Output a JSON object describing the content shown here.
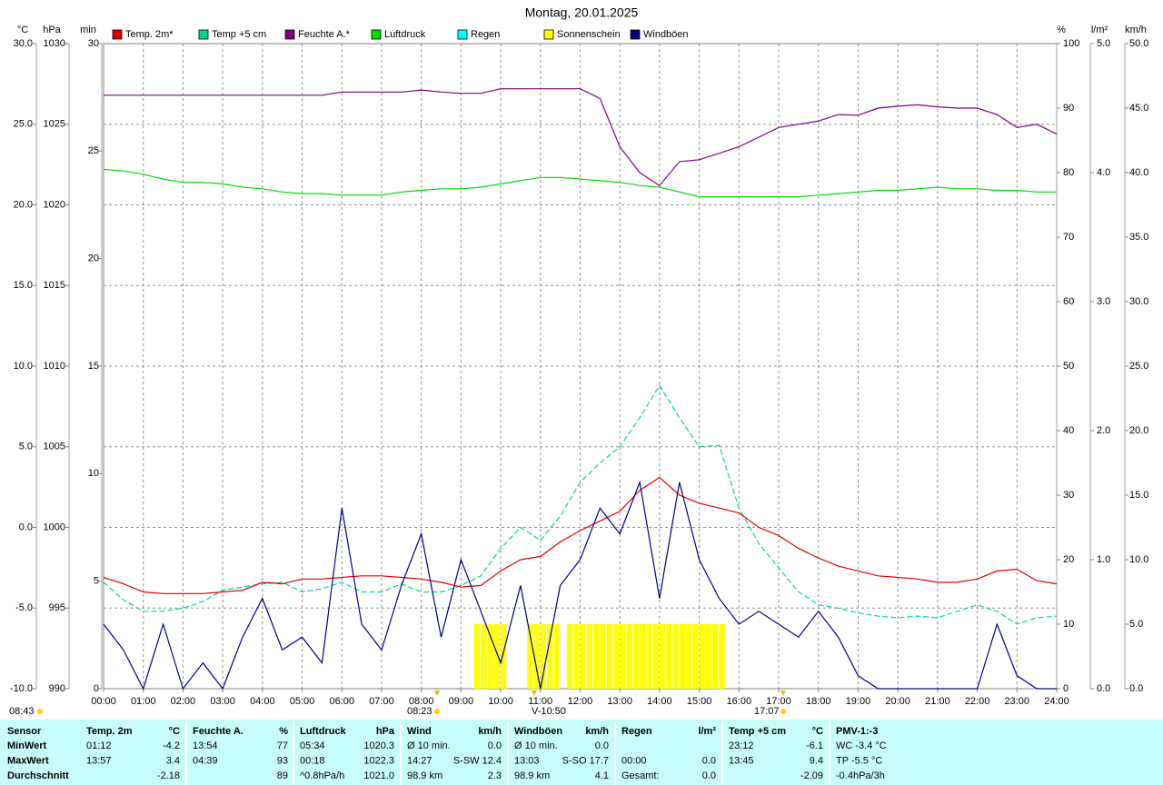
{
  "chart_data": {
    "type": "line",
    "title": "Montag, 20.01.2025",
    "axis_units": {
      "y": "°C",
      "y2": "hPa",
      "y3": "min",
      "y4": "%",
      "y5": "l/m²",
      "y6": "km/h"
    },
    "axis_colors": {
      "y": "#e00000",
      "y2": "#00b000",
      "y3": "#e6e600",
      "y4": "#800080",
      "y5": "#00dddd",
      "y6": "#000080"
    },
    "grid": true,
    "x": [
      0,
      0.5,
      1,
      1.5,
      2,
      2.5,
      3,
      3.5,
      4,
      4.5,
      5,
      5.5,
      6,
      6.5,
      7,
      7.5,
      8,
      8.5,
      9,
      9.5,
      10,
      10.5,
      11,
      11.5,
      12,
      12.5,
      13,
      13.5,
      14,
      14.5,
      15,
      15.5,
      16,
      16.5,
      17,
      17.5,
      18,
      18.5,
      19,
      19.5,
      20,
      20.5,
      21,
      21.5,
      22,
      22.5,
      23,
      23.5,
      24
    ],
    "xlim": [
      0,
      24
    ],
    "xticks": [
      {
        "value": 0,
        "label": "00:00"
      },
      {
        "value": 1,
        "label": "01:00"
      },
      {
        "value": 2,
        "label": "02:00"
      },
      {
        "value": 3,
        "label": "03:00"
      },
      {
        "value": 4,
        "label": "04:00"
      },
      {
        "value": 5,
        "label": "05:00"
      },
      {
        "value": 6,
        "label": "06:00"
      },
      {
        "value": 7,
        "label": "07:00"
      },
      {
        "value": 8,
        "label": "08:00"
      },
      {
        "value": 9,
        "label": "09:00"
      },
      {
        "value": 10,
        "label": "10:00"
      },
      {
        "value": 11,
        "label": "11:00"
      },
      {
        "value": 12,
        "label": "12:00"
      },
      {
        "value": 13,
        "label": "13:00"
      },
      {
        "value": 14,
        "label": "14:00"
      },
      {
        "value": 15,
        "label": "15:00"
      },
      {
        "value": 16,
        "label": "16:00"
      },
      {
        "value": 17,
        "label": "17:00"
      },
      {
        "value": 18,
        "label": "18:00"
      },
      {
        "value": 19,
        "label": "19:00"
      },
      {
        "value": 20,
        "label": "20:00"
      },
      {
        "value": 21,
        "label": "21:00"
      },
      {
        "value": 22,
        "label": "22:00"
      },
      {
        "value": 23,
        "label": "23:00"
      },
      {
        "value": 24,
        "label": "24:00"
      }
    ],
    "ylim": [
      -10,
      30
    ],
    "yticks": [
      {
        "value": -10,
        "label": "-10.0"
      },
      {
        "value": -5,
        "label": "-5.0"
      },
      {
        "value": 0,
        "label": "0.0"
      },
      {
        "value": 5,
        "label": "5.0"
      },
      {
        "value": 10,
        "label": "10.0"
      },
      {
        "value": 15,
        "label": "15.0"
      },
      {
        "value": 20,
        "label": "20.0"
      },
      {
        "value": 25,
        "label": "25.0"
      },
      {
        "value": 30,
        "label": "30.0"
      }
    ],
    "y2lim": [
      990,
      1030
    ],
    "y2ticks": [
      990,
      995,
      1000,
      1005,
      1010,
      1015,
      1020,
      1025,
      1030
    ],
    "y3lim": [
      0,
      30
    ],
    "y3ticks": [
      0,
      5,
      10,
      15,
      20,
      25,
      30
    ],
    "y4lim": [
      0,
      100
    ],
    "y4ticks": [
      0,
      10,
      20,
      30,
      40,
      50,
      60,
      70,
      80,
      90,
      100
    ],
    "y5lim": [
      0,
      5
    ],
    "y5ticks": [
      {
        "value": 0,
        "label": "0.0"
      },
      {
        "value": 1,
        "label": "1.0"
      },
      {
        "value": 2,
        "label": "2.0"
      },
      {
        "value": 3,
        "label": "3.0"
      },
      {
        "value": 4,
        "label": "4.0"
      },
      {
        "value": 5,
        "label": "5.0"
      }
    ],
    "y6lim": [
      0,
      50
    ],
    "y6ticks": [
      {
        "value": 0,
        "label": "0.0"
      },
      {
        "value": 5,
        "label": "5.0"
      },
      {
        "value": 10,
        "label": "10.0"
      },
      {
        "value": 15,
        "label": "15.0"
      },
      {
        "value": 20,
        "label": "20.0"
      },
      {
        "value": 25,
        "label": "25.0"
      },
      {
        "value": 30,
        "label": "30.0"
      },
      {
        "value": 35,
        "label": "35.0"
      },
      {
        "value": 40,
        "label": "40.0"
      },
      {
        "value": 45,
        "label": "45.0"
      },
      {
        "value": 50,
        "label": "50.0"
      }
    ],
    "series": [
      {
        "name": "Temp. 2m*",
        "color": "#e00000",
        "axis": "y",
        "values": [
          -3.1,
          -3.5,
          -4.0,
          -4.1,
          -4.1,
          -4.1,
          -4.0,
          -3.9,
          -3.4,
          -3.5,
          -3.2,
          -3.2,
          -3.1,
          -3.0,
          -3.0,
          -3.1,
          -3.2,
          -3.4,
          -3.7,
          -3.6,
          -2.7,
          -2.0,
          -1.8,
          -0.9,
          -0.2,
          0.4,
          1.0,
          2.3,
          3.1,
          2.0,
          1.5,
          1.2,
          0.9,
          0.0,
          -0.5,
          -1.3,
          -1.9,
          -2.4,
          -2.7,
          -3.0,
          -3.1,
          -3.2,
          -3.4,
          -3.4,
          -3.2,
          -2.7,
          -2.6,
          -3.3,
          -3.5
        ]
      },
      {
        "name": "Temp +5 cm",
        "color": "#00d890",
        "axis": "y",
        "dashed": true,
        "values": [
          -3.4,
          -4.5,
          -5.2,
          -5.2,
          -5.0,
          -4.6,
          -3.9,
          -3.7,
          -3.5,
          -3.4,
          -4.0,
          -3.8,
          -3.4,
          -4.0,
          -4.0,
          -3.5,
          -4.0,
          -4.0,
          -3.6,
          -3.0,
          -1.3,
          0.0,
          -0.8,
          0.7,
          2.8,
          4.0,
          5.0,
          6.8,
          8.8,
          6.8,
          5.0,
          5.1,
          1.2,
          -1.0,
          -2.5,
          -4.0,
          -4.8,
          -5.0,
          -5.3,
          -5.5,
          -5.6,
          -5.5,
          -5.6,
          -5.2,
          -4.8,
          -5.2,
          -6.0,
          -5.6,
          -5.5
        ]
      },
      {
        "name": "Feuchte A.*",
        "color": "#800080",
        "axis": "y4",
        "values": [
          92,
          92,
          92,
          92,
          92,
          92,
          92,
          92,
          92,
          92,
          92,
          92,
          92.5,
          92.5,
          92.5,
          92.5,
          92.8,
          92.5,
          92.3,
          92.3,
          93,
          93,
          93,
          93,
          93,
          91.5,
          84,
          80,
          78,
          81.7,
          82,
          83,
          84,
          85.5,
          87,
          87.5,
          88,
          89,
          88.9,
          90,
          90.3,
          90.5,
          90.2,
          90,
          90,
          89,
          87,
          87.5,
          86
        ]
      },
      {
        "name": "Luftdruck",
        "color": "#00e000",
        "axis": "y2",
        "values": [
          1022.2,
          1022.1,
          1021.9,
          1021.6,
          1021.4,
          1021.4,
          1021.3,
          1021.1,
          1021.0,
          1020.8,
          1020.7,
          1020.7,
          1020.6,
          1020.6,
          1020.6,
          1020.8,
          1020.9,
          1021.0,
          1021.0,
          1021.1,
          1021.3,
          1021.5,
          1021.7,
          1021.7,
          1021.6,
          1021.5,
          1021.4,
          1021.2,
          1021.1,
          1020.8,
          1020.5,
          1020.5,
          1020.5,
          1020.5,
          1020.5,
          1020.5,
          1020.6,
          1020.7,
          1020.8,
          1020.9,
          1020.9,
          1021.0,
          1021.1,
          1021.0,
          1021.0,
          1020.9,
          1020.9,
          1020.8,
          1020.8
        ]
      },
      {
        "name": "Regen",
        "color": "#00ffff",
        "axis": "y5"
      },
      {
        "name": "Sonnenschein",
        "color": "#ffff00",
        "axis": "y3",
        "type": "bar",
        "x": [
          9.333,
          9.5,
          9.667,
          9.833,
          10,
          10.667,
          10.833,
          11,
          11.167,
          11.333,
          11.667,
          11.833,
          12,
          12.167,
          12.333,
          12.5,
          12.667,
          12.833,
          13,
          13.167,
          13.333,
          13.5,
          13.667,
          13.833,
          14,
          14.167,
          14.333,
          14.5,
          14.667,
          14.833,
          15,
          15.167,
          15.333,
          15.5
        ],
        "values": [
          3,
          3,
          3,
          3,
          3,
          3,
          3,
          3,
          3,
          3,
          3,
          3,
          3,
          3,
          3,
          3,
          3,
          3,
          3,
          3,
          3,
          3,
          3,
          3,
          3,
          3,
          3,
          3,
          3,
          3,
          3,
          3,
          3,
          3
        ]
      },
      {
        "name": "Windböen",
        "color": "#000080",
        "axis": "y6",
        "values": [
          5,
          3,
          0,
          5,
          0,
          2,
          0,
          4,
          7,
          3,
          4,
          2,
          14,
          5,
          3,
          8,
          12,
          4,
          10,
          6,
          2,
          8,
          0,
          8,
          10,
          14,
          12,
          16,
          7,
          16,
          10,
          7,
          5,
          6,
          5,
          4,
          6,
          4,
          1,
          0,
          0,
          0,
          0,
          0,
          0,
          5,
          1,
          0,
          0
        ]
      }
    ],
    "sun_labels": [
      "08:43",
      "08:23",
      "V-10:50",
      "17:07"
    ]
  },
  "stats": {
    "header": [
      [
        "Sensor"
      ],
      [
        "Temp. 2m",
        "°C"
      ],
      [
        "Feuchte A.",
        "%"
      ],
      [
        "Luftdruck",
        "hPa"
      ],
      [
        "Wind",
        "km/h"
      ],
      [
        "Windböen",
        "km/h"
      ],
      [
        "Regen",
        "l/m²"
      ],
      [
        "Temp +5 cm",
        "°C"
      ],
      [
        "PMV-1:-3"
      ]
    ],
    "rows": [
      [
        [
          "MinWert"
        ],
        [
          "01:12",
          "-4.2"
        ],
        [
          "13:54",
          "77"
        ],
        [
          "05:34",
          "1020.3"
        ],
        [
          "Ø 10 min.",
          "0.0"
        ],
        [
          "Ø 10 min.",
          "0.0"
        ],
        [
          null,
          null
        ],
        [
          "23:12",
          "-6.1"
        ],
        [
          "WC -3.4 °C"
        ]
      ],
      [
        [
          "MaxWert"
        ],
        [
          "13:57",
          "3.4"
        ],
        [
          "04:39",
          "93"
        ],
        [
          "00:18",
          "1022.3"
        ],
        [
          "14:27",
          "S-SW 12.4"
        ],
        [
          "13:03",
          "S-SO 17.7"
        ],
        [
          "00:00",
          "0.0"
        ],
        [
          "13:45",
          "9.4"
        ],
        [
          "TP -5.5 °C"
        ]
      ],
      [
        [
          "Durchschnitt"
        ],
        [
          null,
          "-2.18"
        ],
        [
          null,
          "89"
        ],
        [
          "^0.8hPa/h",
          "1021.0"
        ],
        [
          "98.9 km",
          "2.3"
        ],
        [
          "98.9 km",
          "4.1"
        ],
        [
          "Gesamt:",
          "0.0"
        ],
        [
          null,
          "-2.09"
        ],
        [
          "-0.4hPa/3h"
        ]
      ]
    ]
  }
}
